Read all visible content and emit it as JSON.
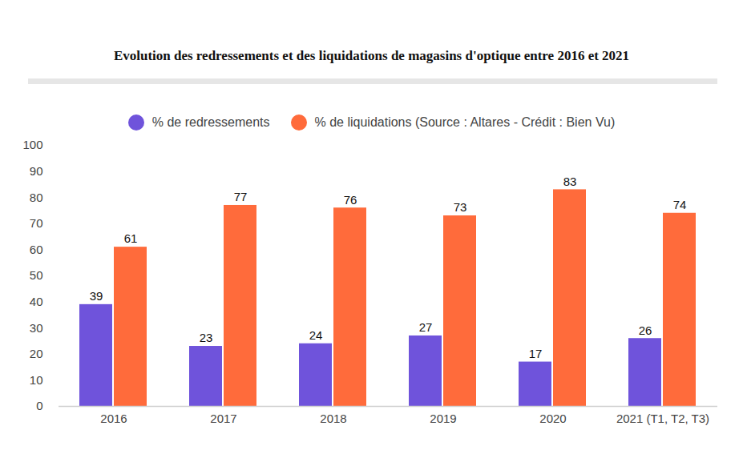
{
  "chart_data": {
    "type": "bar",
    "title": "Evolution des redressements et des liquidations de magasins d'optique entre 2016 et 2021",
    "categories": [
      "2016",
      "2017",
      "2018",
      "2019",
      "2020",
      "2021 (T1, T2, T3)"
    ],
    "series": [
      {
        "name": "% de redressements",
        "color": "#6f53db",
        "values": [
          39,
          23,
          24,
          27,
          17,
          26
        ]
      },
      {
        "name": "% de liquidations (Source : Altares - Crédit : Bien Vu)",
        "color": "#ff6b3b",
        "values": [
          61,
          77,
          76,
          73,
          83,
          74
        ]
      }
    ],
    "ylim": [
      0,
      100
    ],
    "yticks": [
      0,
      10,
      20,
      30,
      40,
      50,
      60,
      70,
      80,
      90,
      100
    ],
    "grid": false,
    "data_labels": true,
    "legend": "top"
  }
}
